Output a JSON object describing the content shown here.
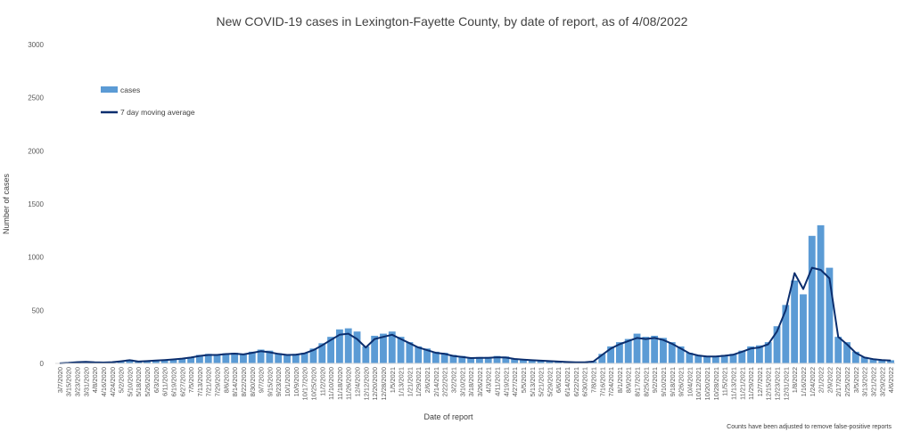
{
  "chart_data": {
    "type": "bar",
    "title": "New COVID-19 cases in Lexington-Fayette County, by date of report, as of 4/08/2022",
    "xlabel": "Date of report",
    "ylabel": "Number of cases",
    "note": "Counts have been adjusted to remove false-positive reports",
    "ylim": [
      0,
      3000
    ],
    "yticks": [
      "0",
      "500",
      "1000",
      "1500",
      "2000",
      "2500",
      "3000"
    ],
    "grid": false,
    "legend_placement": "top-left",
    "colors": {
      "bar": "#5B9BD5",
      "line": "#0B2E6E"
    },
    "xticks": [
      "3/7/2020",
      "3/15/2020",
      "3/23/2020",
      "3/31/2020",
      "4/8/2020",
      "4/16/2020",
      "4/24/2020",
      "5/2/2020",
      "5/10/2020",
      "5/18/2020",
      "5/26/2020",
      "6/3/2020",
      "6/11/2020",
      "6/19/2020",
      "6/27/2020",
      "7/5/2020",
      "7/13/2020",
      "7/21/2020",
      "7/29/2020",
      "8/6/2020",
      "8/14/2020",
      "8/22/2020",
      "8/30/2020",
      "9/7/2020",
      "9/15/2020",
      "9/23/2020",
      "10/1/2020",
      "10/9/2020",
      "10/17/2020",
      "10/25/2020",
      "11/2/2020",
      "11/10/2020",
      "11/18/2020",
      "11/26/2020",
      "12/4/2020",
      "12/12/2020",
      "12/20/2020",
      "12/28/2020",
      "1/5/2021",
      "1/13/2021",
      "1/21/2021",
      "1/29/2021",
      "2/6/2021",
      "2/14/2021",
      "2/22/2021",
      "3/2/2021",
      "3/10/2021",
      "3/18/2021",
      "3/26/2021",
      "4/3/2021",
      "4/11/2021",
      "4/19/2021",
      "4/27/2021",
      "5/5/2021",
      "5/13/2021",
      "5/21/2021",
      "5/29/2021",
      "6/6/2021",
      "6/14/2021",
      "6/22/2021",
      "6/30/2021",
      "7/8/2021",
      "7/16/2021",
      "7/24/2021",
      "8/1/2021",
      "8/9/2021",
      "8/17/2021",
      "8/25/2021",
      "9/2/2021",
      "9/10/2021",
      "9/18/2021",
      "9/26/2021",
      "10/4/2021",
      "10/12/2021",
      "10/20/2021",
      "10/28/2021",
      "11/5/2021",
      "11/13/2021",
      "11/21/2021",
      "11/29/2021",
      "12/7/2021",
      "12/15/2021",
      "12/23/2021",
      "12/31/2021",
      "1/8/2022",
      "1/16/2022",
      "1/24/2022",
      "2/1/2022",
      "2/9/2022",
      "2/17/2022",
      "2/25/2022",
      "3/5/2022",
      "3/13/2022",
      "3/21/2022",
      "3/29/2022",
      "4/6/2022"
    ],
    "series": [
      {
        "name": "cases",
        "type": "bar",
        "x": [
          "3/7/2020",
          "3/15/2020",
          "3/23/2020",
          "3/31/2020",
          "4/8/2020",
          "4/16/2020",
          "4/24/2020",
          "5/2/2020",
          "5/10/2020",
          "5/18/2020",
          "5/26/2020",
          "6/3/2020",
          "6/11/2020",
          "6/19/2020",
          "6/27/2020",
          "7/5/2020",
          "7/13/2020",
          "7/21/2020",
          "7/29/2020",
          "8/6/2020",
          "8/14/2020",
          "8/22/2020",
          "8/30/2020",
          "9/7/2020",
          "9/15/2020",
          "9/23/2020",
          "10/1/2020",
          "10/9/2020",
          "10/17/2020",
          "10/25/2020",
          "11/2/2020",
          "11/10/2020",
          "11/18/2020",
          "11/26/2020",
          "12/4/2020",
          "12/12/2020",
          "12/20/2020",
          "12/28/2020",
          "1/5/2021",
          "1/13/2021",
          "1/21/2021",
          "1/29/2021",
          "2/6/2021",
          "2/14/2021",
          "2/22/2021",
          "3/2/2021",
          "3/10/2021",
          "3/18/2021",
          "3/26/2021",
          "4/3/2021",
          "4/11/2021",
          "4/19/2021",
          "4/27/2021",
          "5/5/2021",
          "5/13/2021",
          "5/21/2021",
          "5/29/2021",
          "6/6/2021",
          "6/14/2021",
          "6/22/2021",
          "6/30/2021",
          "7/8/2021",
          "7/16/2021",
          "7/24/2021",
          "8/1/2021",
          "8/9/2021",
          "8/17/2021",
          "8/25/2021",
          "9/2/2021",
          "9/10/2021",
          "9/18/2021",
          "9/26/2021",
          "10/4/2021",
          "10/12/2021",
          "10/20/2021",
          "10/28/2021",
          "11/5/2021",
          "11/13/2021",
          "11/21/2021",
          "11/29/2021",
          "12/7/2021",
          "12/15/2021",
          "12/23/2021",
          "12/31/2021",
          "1/8/2022",
          "1/16/2022",
          "1/24/2022",
          "2/1/2022",
          "2/9/2022",
          "2/17/2022",
          "2/25/2022",
          "3/5/2022",
          "3/13/2022",
          "3/21/2022",
          "3/29/2022",
          "4/6/2022"
        ],
        "values": [
          2,
          8,
          15,
          20,
          10,
          8,
          15,
          25,
          35,
          20,
          25,
          30,
          35,
          40,
          50,
          60,
          80,
          90,
          85,
          95,
          100,
          90,
          110,
          130,
          120,
          95,
          85,
          90,
          100,
          140,
          190,
          250,
          320,
          330,
          300,
          160,
          260,
          280,
          300,
          250,
          200,
          160,
          140,
          110,
          100,
          80,
          70,
          55,
          60,
          60,
          70,
          65,
          45,
          40,
          35,
          30,
          25,
          20,
          15,
          12,
          12,
          20,
          90,
          160,
          200,
          230,
          280,
          250,
          260,
          240,
          200,
          160,
          100,
          80,
          70,
          70,
          80,
          90,
          120,
          160,
          170,
          200,
          350,
          550,
          780,
          650,
          1200,
          1300,
          900,
          250,
          200,
          110,
          60,
          45,
          35,
          30
        ]
      },
      {
        "name": "7 day moving average",
        "type": "line",
        "x": [
          "3/7/2020",
          "3/15/2020",
          "3/23/2020",
          "3/31/2020",
          "4/8/2020",
          "4/16/2020",
          "4/24/2020",
          "5/2/2020",
          "5/10/2020",
          "5/18/2020",
          "5/26/2020",
          "6/3/2020",
          "6/11/2020",
          "6/19/2020",
          "6/27/2020",
          "7/5/2020",
          "7/13/2020",
          "7/21/2020",
          "7/29/2020",
          "8/6/2020",
          "8/14/2020",
          "8/22/2020",
          "8/30/2020",
          "9/7/2020",
          "9/15/2020",
          "9/23/2020",
          "10/1/2020",
          "10/9/2020",
          "10/17/2020",
          "10/25/2020",
          "11/2/2020",
          "11/10/2020",
          "11/18/2020",
          "11/26/2020",
          "12/4/2020",
          "12/12/2020",
          "12/20/2020",
          "12/28/2020",
          "1/5/2021",
          "1/13/2021",
          "1/21/2021",
          "1/29/2021",
          "2/6/2021",
          "2/14/2021",
          "2/22/2021",
          "3/2/2021",
          "3/10/2021",
          "3/18/2021",
          "3/26/2021",
          "4/3/2021",
          "4/11/2021",
          "4/19/2021",
          "4/27/2021",
          "5/5/2021",
          "5/13/2021",
          "5/21/2021",
          "5/29/2021",
          "6/6/2021",
          "6/14/2021",
          "6/22/2021",
          "6/30/2021",
          "7/8/2021",
          "7/16/2021",
          "7/24/2021",
          "8/1/2021",
          "8/9/2021",
          "8/17/2021",
          "8/25/2021",
          "9/2/2021",
          "9/10/2021",
          "9/18/2021",
          "9/26/2021",
          "10/4/2021",
          "10/12/2021",
          "10/20/2021",
          "10/28/2021",
          "11/5/2021",
          "11/13/2021",
          "11/21/2021",
          "11/29/2021",
          "12/7/2021",
          "12/15/2021",
          "12/23/2021",
          "12/31/2021",
          "1/8/2022",
          "1/16/2022",
          "1/24/2022",
          "2/1/2022",
          "2/9/2022",
          "2/17/2022",
          "2/25/2022",
          "3/5/2022",
          "3/13/2022",
          "3/21/2022",
          "3/29/2022",
          "4/6/2022"
        ],
        "values": [
          1,
          5,
          12,
          15,
          10,
          8,
          12,
          20,
          30,
          18,
          22,
          28,
          32,
          38,
          45,
          55,
          70,
          80,
          80,
          88,
          92,
          85,
          100,
          115,
          105,
          90,
          80,
          82,
          95,
          125,
          170,
          220,
          270,
          280,
          230,
          150,
          230,
          250,
          270,
          230,
          190,
          150,
          125,
          100,
          90,
          70,
          60,
          50,
          52,
          52,
          58,
          55,
          42,
          36,
          30,
          26,
          22,
          18,
          13,
          10,
          10,
          18,
          80,
          140,
          180,
          210,
          240,
          230,
          240,
          220,
          185,
          140,
          95,
          75,
          65,
          65,
          72,
          82,
          110,
          140,
          150,
          180,
          300,
          500,
          850,
          700,
          900,
          880,
          800,
          250,
          180,
          100,
          55,
          40,
          32,
          28
        ]
      }
    ]
  }
}
